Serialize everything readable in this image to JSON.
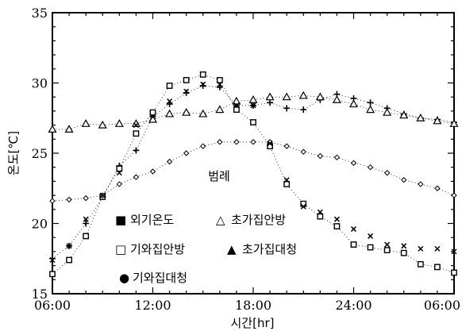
{
  "chart_data": {
    "type": "scatter",
    "title": "",
    "xlabel": "시간[hr]",
    "ylabel": "온도[℃]",
    "x_tick_labels": [
      "06:00",
      "12:00",
      "18:00",
      "24:00",
      "06:00"
    ],
    "y_tick_labels": [
      "15",
      "20",
      "25",
      "30",
      "35"
    ],
    "xlim": [
      6,
      30
    ],
    "ylim": [
      15,
      35
    ],
    "legend_title": "범례",
    "legend_position": "bottom-left",
    "grid": false,
    "series": [
      {
        "name": "외기온도",
        "marker": "cross",
        "x": [
          6,
          7,
          8,
          9,
          10,
          11,
          12,
          13,
          14,
          15,
          16,
          17,
          18,
          19,
          20,
          21,
          22,
          23,
          24,
          25,
          26,
          27,
          28,
          29,
          30
        ],
        "y": [
          17.5,
          18.4,
          20.0,
          21.9,
          24.1,
          25.2,
          27.6,
          28.5,
          29.3,
          29.8,
          29.7,
          28.4,
          28.4,
          28.6,
          28.2,
          28.1,
          28.8,
          29.2,
          28.9,
          28.6,
          28.2,
          27.8,
          27.5,
          27.4,
          27.2
        ]
      },
      {
        "name": "초가집안방",
        "marker": "triangle-open",
        "x": [
          6,
          7,
          8,
          9,
          10,
          11,
          12,
          13,
          14,
          15,
          16,
          17,
          18,
          19,
          20,
          21,
          22,
          23,
          24,
          25,
          26,
          27,
          28,
          29,
          30
        ],
        "y": [
          26.7,
          26.7,
          27.1,
          27.0,
          27.1,
          27.1,
          27.4,
          27.8,
          27.9,
          27.8,
          28.1,
          28.7,
          28.8,
          29.0,
          29.0,
          29.1,
          29.0,
          28.8,
          28.5,
          28.1,
          27.9,
          27.7,
          27.5,
          27.3,
          27.1
        ]
      },
      {
        "name": "기와집안방",
        "marker": "square-open",
        "x": [
          6,
          7,
          8,
          9,
          10,
          11,
          12,
          13,
          14,
          15,
          16,
          17,
          18,
          19,
          20,
          21,
          22,
          23,
          24,
          25,
          26,
          27,
          28,
          29,
          30
        ],
        "y": [
          16.4,
          17.4,
          19.1,
          21.9,
          23.9,
          26.4,
          27.9,
          29.8,
          30.2,
          30.6,
          30.2,
          28.1,
          27.2,
          25.5,
          22.8,
          21.4,
          20.5,
          19.8,
          18.5,
          18.3,
          18.1,
          17.9,
          17.1,
          16.9,
          16.5
        ]
      },
      {
        "name": "초가집대청",
        "marker": "triangle-filled",
        "x": [],
        "y": []
      },
      {
        "name": "기와집대청",
        "marker": "diamond-small",
        "x": [
          6,
          7,
          8,
          9,
          10,
          11,
          12,
          13,
          14,
          15,
          16,
          17,
          18,
          19,
          20,
          21,
          22,
          23,
          24,
          25,
          26,
          27,
          28,
          29,
          30
        ],
        "y": [
          21.6,
          21.7,
          21.8,
          22.0,
          22.8,
          23.3,
          23.7,
          24.4,
          25.0,
          25.5,
          25.8,
          25.8,
          25.8,
          25.8,
          25.5,
          25.1,
          24.8,
          24.7,
          24.3,
          24.0,
          23.6,
          23.1,
          22.8,
          22.5,
          22.0
        ]
      },
      {
        "name": "",
        "marker": "x",
        "x": [
          6,
          7,
          8,
          9,
          10,
          11,
          12,
          13,
          14,
          15,
          16,
          17,
          18,
          19,
          20,
          21,
          22,
          23,
          24,
          25,
          26,
          27,
          28,
          29,
          30
        ],
        "y": [
          17.4,
          18.4,
          20.3,
          22.0,
          23.6,
          27.0,
          27.6,
          28.7,
          29.4,
          29.9,
          29.9,
          28.4,
          28.4,
          25.7,
          23.1,
          21.2,
          20.8,
          20.3,
          19.6,
          19.1,
          18.5,
          18.4,
          18.2,
          18.2,
          18.0
        ]
      }
    ],
    "legend_entries": [
      {
        "symbol": "■",
        "label": "외기온도"
      },
      {
        "symbol": "△",
        "label": "초가집안방"
      },
      {
        "symbol": "□",
        "label": "기와집안방"
      },
      {
        "symbol": "▲",
        "label": "초가집대청"
      },
      {
        "symbol": "●",
        "label": "기와집대청"
      }
    ]
  }
}
